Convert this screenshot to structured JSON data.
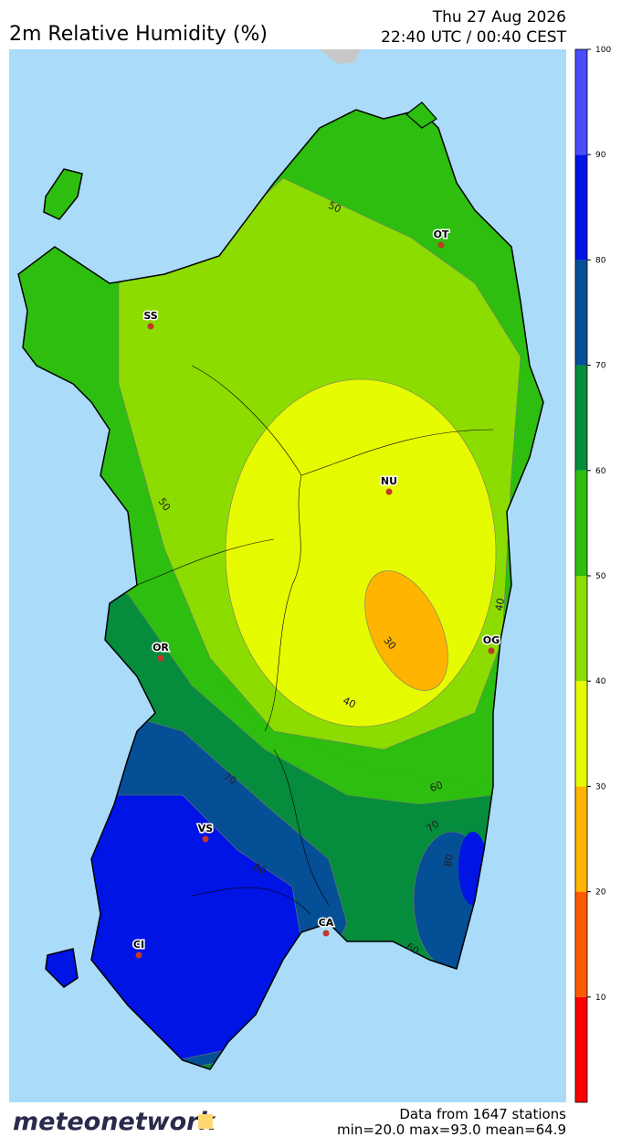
{
  "header": {
    "title": "2m Relative Humidity (%)",
    "date": "Thu 27 Aug 2026",
    "time": "22:40 UTC / 00:40 CEST"
  },
  "colorbar": {
    "range": [
      0,
      100
    ],
    "ticks": [
      10,
      20,
      30,
      40,
      50,
      60,
      70,
      80,
      90,
      100
    ],
    "colors": [
      "#ff0000",
      "#ff5a00",
      "#ffb400",
      "#e6fa00",
      "#8cdc00",
      "#2dbe0f",
      "#058c3c",
      "#054f96",
      "#0014e6",
      "#4b4bff"
    ]
  },
  "stations": [
    "SS",
    "OT",
    "NU",
    "OR",
    "OG",
    "VS",
    "CA",
    "CI"
  ],
  "contour_labels": [
    "50",
    "50",
    "40",
    "30",
    "40",
    "60",
    "70",
    "70",
    "80",
    "80",
    "60"
  ],
  "footer": {
    "logo": "meteonetwork",
    "stations": "Data from 1647 stations",
    "stats": "min=20.0 max=93.0 mean=64.9"
  }
}
